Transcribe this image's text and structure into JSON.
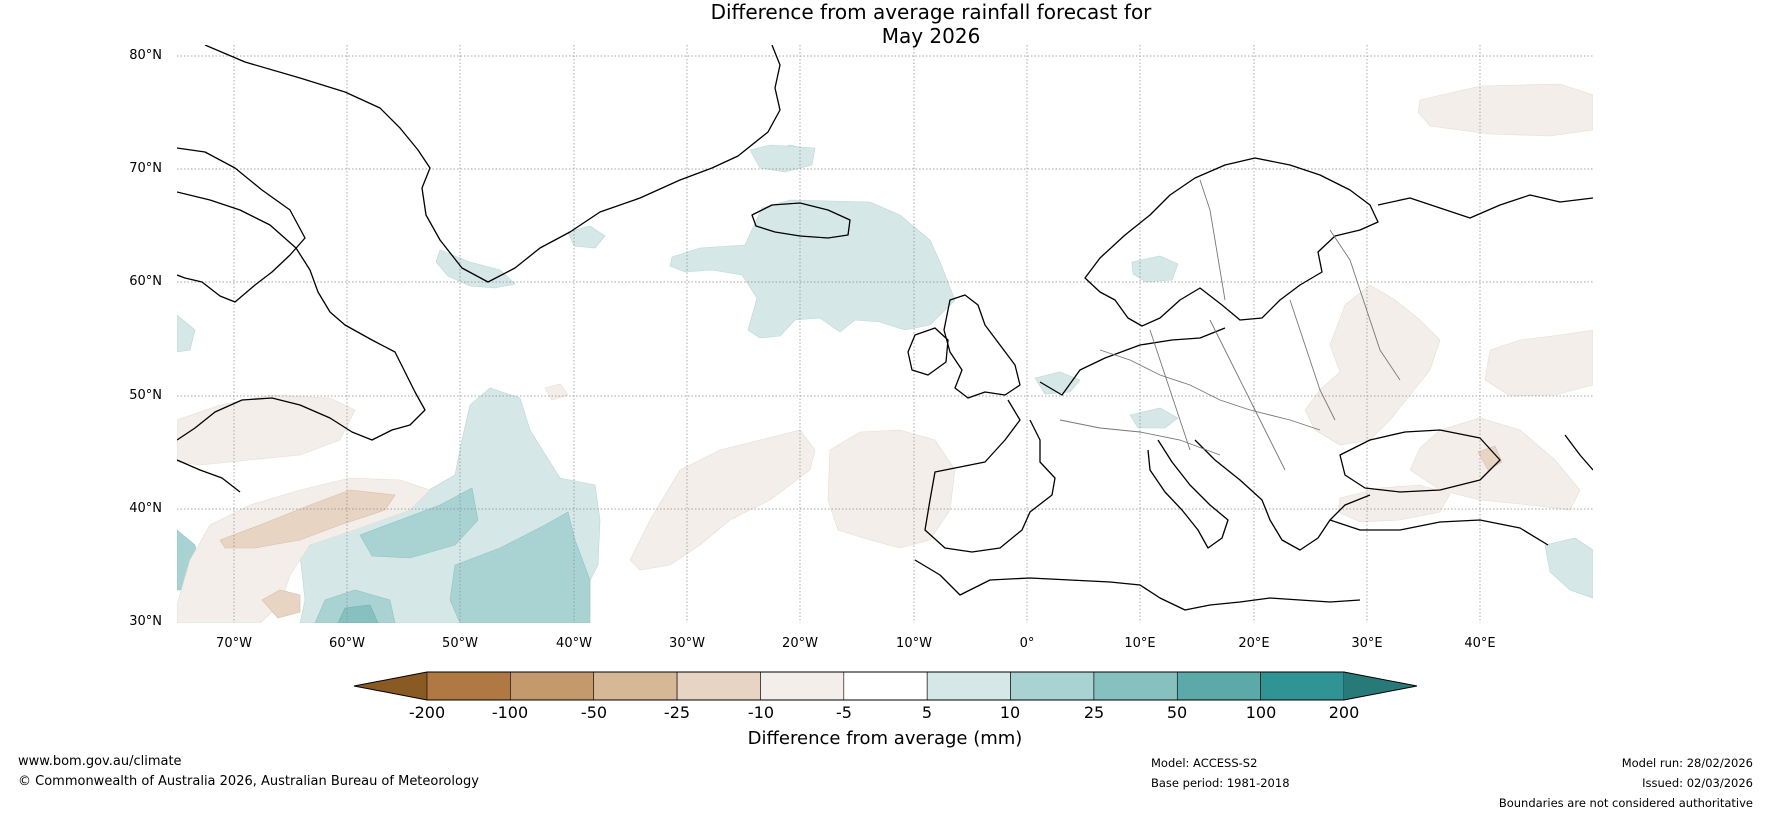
{
  "title": {
    "line1": "Difference from average rainfall forecast for",
    "line2": "May 2026"
  },
  "map": {
    "lat_labels": [
      "80°N",
      "70°N",
      "60°N",
      "50°N",
      "40°N",
      "30°N"
    ],
    "lon_labels": [
      "70°W",
      "60°W",
      "50°W",
      "40°W",
      "30°W",
      "20°W",
      "10°W",
      "0°",
      "10°E",
      "20°E",
      "30°E",
      "40°E"
    ],
    "lat_range": [
      30,
      81
    ],
    "lon_range": [
      -75,
      50
    ]
  },
  "colorbar": {
    "title": "Difference from average (mm)",
    "ticks": [
      "-200",
      "-100",
      "-50",
      "-25",
      "-10",
      "-5",
      "5",
      "10",
      "25",
      "50",
      "100",
      "200"
    ],
    "colors": [
      "#8a5a24",
      "#b07842",
      "#c49a6c",
      "#d7b896",
      "#e7d4c3",
      "#f3eee9",
      "#ffffff",
      "#d5e8e7",
      "#a9d3d3",
      "#86c1c0",
      "#5ba9a9",
      "#2f9493",
      "#277a78"
    ]
  },
  "footer": {
    "website": "www.bom.gov.au/climate",
    "copyright": "© Commonwealth of Australia 2026, Australian Bureau of Meteorology",
    "model": "Model: ACCESS-S2",
    "base_period": "Base period: 1981-2018",
    "model_run": "Model run: 28/02/2026",
    "issued": "Issued: 02/03/2026",
    "disclaimer": "Boundaries are not considered authoritative"
  }
}
